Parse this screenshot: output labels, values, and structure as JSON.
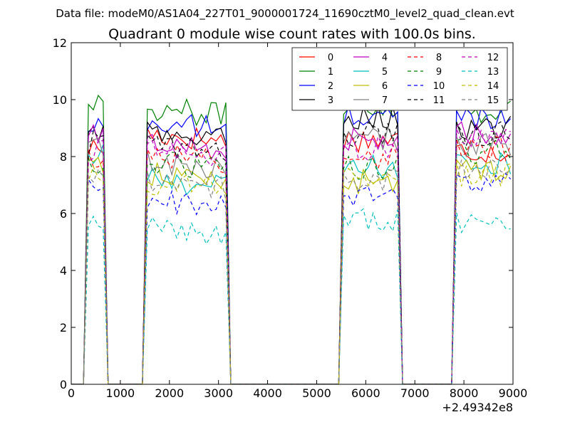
{
  "suptitle": "Data file: modeM0/AS1A04_227T01_9000001724_11690cztM0_level2_quad_clean.evt",
  "chart_data": {
    "type": "line",
    "title": "Quadrant 0 module wise count rates with 100.0s bins.",
    "xlabel": "",
    "ylabel": "",
    "x_offset_label": "+2.49342e8",
    "xlim": [
      0,
      9000
    ],
    "ylim": [
      0,
      12
    ],
    "x_ticks": [
      "0",
      "1000",
      "2000",
      "3000",
      "4000",
      "5000",
      "6000",
      "7000",
      "8000",
      "9000"
    ],
    "y_ticks": [
      "0",
      "2",
      "4",
      "6",
      "8",
      "10",
      "12"
    ],
    "legend_position": "top-right",
    "legend_columns": 4,
    "segments": [
      {
        "start": 350,
        "end": 650
      },
      {
        "start": 1550,
        "end": 3150
      },
      {
        "start": 5550,
        "end": 6650
      },
      {
        "start": 7850,
        "end": 9000
      }
    ],
    "series": [
      {
        "name": "0",
        "color": "#ff0000",
        "dash": false,
        "levels": [
          8.3,
          8.8,
          8.6,
          8.2
        ]
      },
      {
        "name": "1",
        "color": "#008000",
        "dash": false,
        "levels": [
          10.0,
          9.7,
          9.8,
          9.6
        ]
      },
      {
        "name": "2",
        "color": "#0000ff",
        "dash": false,
        "levels": [
          9.0,
          9.2,
          9.4,
          9.4
        ]
      },
      {
        "name": "3",
        "color": "#000000",
        "dash": false,
        "levels": [
          8.9,
          8.8,
          9.4,
          9.0
        ]
      },
      {
        "name": "4",
        "color": "#bf00bf",
        "dash": false,
        "levels": [
          8.7,
          8.5,
          8.6,
          8.8
        ]
      },
      {
        "name": "5",
        "color": "#00bfbf",
        "dash": false,
        "levels": [
          8.0,
          7.2,
          7.6,
          7.8
        ]
      },
      {
        "name": "6",
        "color": "#bfbf00",
        "dash": false,
        "levels": [
          7.8,
          7.4,
          7.1,
          7.6
        ]
      },
      {
        "name": "7",
        "color": "#808080",
        "dash": false,
        "levels": [
          8.3,
          7.8,
          8.6,
          8.4
        ]
      },
      {
        "name": "8",
        "color": "#ff0000",
        "dash": true,
        "levels": [
          8.0,
          8.1,
          8.0,
          8.3
        ]
      },
      {
        "name": "9",
        "color": "#008000",
        "dash": true,
        "levels": [
          7.6,
          7.8,
          7.6,
          8.2
        ]
      },
      {
        "name": "10",
        "color": "#0000ff",
        "dash": true,
        "levels": [
          6.8,
          6.5,
          6.6,
          7.0
        ]
      },
      {
        "name": "11",
        "color": "#000000",
        "dash": true,
        "levels": [
          8.5,
          8.4,
          8.8,
          8.8
        ]
      },
      {
        "name": "12",
        "color": "#bf00bf",
        "dash": true,
        "levels": [
          8.2,
          8.3,
          8.3,
          8.6
        ]
      },
      {
        "name": "13",
        "color": "#00bfbf",
        "dash": true,
        "levels": [
          5.9,
          5.5,
          5.8,
          5.6
        ]
      },
      {
        "name": "14",
        "color": "#bfbf00",
        "dash": true,
        "levels": [
          7.4,
          7.1,
          7.3,
          7.4
        ]
      },
      {
        "name": "15",
        "color": "#808080",
        "dash": true,
        "levels": [
          7.5,
          7.1,
          7.2,
          7.6
        ]
      }
    ]
  }
}
